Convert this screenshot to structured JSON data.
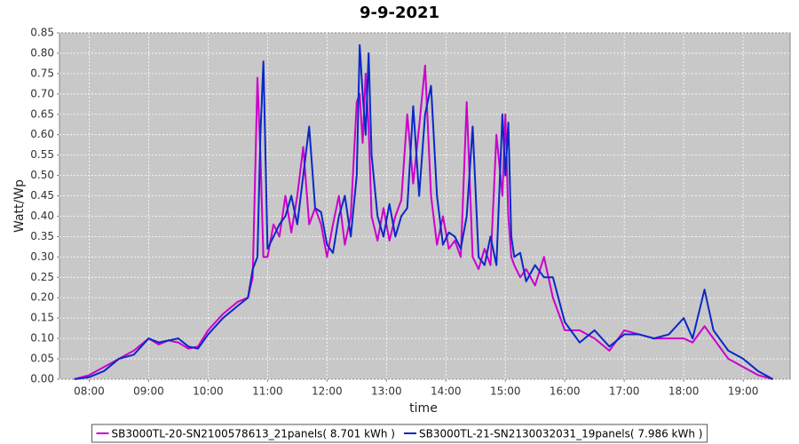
{
  "chart_data": {
    "type": "line",
    "title": "9-9-2021",
    "x_label": "time",
    "y_label": "Watt/Wp",
    "grid": true,
    "legend": "bottom",
    "xlim": [
      7.5,
      19.79
    ],
    "ylim": [
      0,
      0.85
    ],
    "xticks": [
      {
        "value": 8,
        "label": "08:00"
      },
      {
        "value": 9,
        "label": "09:00"
      },
      {
        "value": 10,
        "label": "10:00"
      },
      {
        "value": 11,
        "label": "11:00"
      },
      {
        "value": 12,
        "label": "12:00"
      },
      {
        "value": 13,
        "label": "13:00"
      },
      {
        "value": 14,
        "label": "14:00"
      },
      {
        "value": 15,
        "label": "15:00"
      },
      {
        "value": 16,
        "label": "16:00"
      },
      {
        "value": 17,
        "label": "17:00"
      },
      {
        "value": 18,
        "label": "18:00"
      },
      {
        "value": 19,
        "label": "19:00"
      }
    ],
    "yticks": [
      {
        "value": 0,
        "label": "0.00"
      },
      {
        "value": 0.05,
        "label": "0.05"
      },
      {
        "value": 0.1,
        "label": "0.10"
      },
      {
        "value": 0.15,
        "label": "0.15"
      },
      {
        "value": 0.2,
        "label": "0.20"
      },
      {
        "value": 0.25,
        "label": "0.25"
      },
      {
        "value": 0.3,
        "label": "0.30"
      },
      {
        "value": 0.35,
        "label": "0.35"
      },
      {
        "value": 0.4,
        "label": "0.40"
      },
      {
        "value": 0.45,
        "label": "0.45"
      },
      {
        "value": 0.5,
        "label": "0.50"
      },
      {
        "value": 0.55,
        "label": "0.55"
      },
      {
        "value": 0.6,
        "label": "0.60"
      },
      {
        "value": 0.65,
        "label": "0.65"
      },
      {
        "value": 0.7,
        "label": "0.70"
      },
      {
        "value": 0.75,
        "label": "0.75"
      },
      {
        "value": 0.8,
        "label": "0.80"
      },
      {
        "value": 0.85,
        "label": "0.85"
      }
    ],
    "x": [
      7.75,
      8.0,
      8.25,
      8.5,
      8.75,
      9.0,
      9.17,
      9.33,
      9.5,
      9.67,
      9.83,
      10.0,
      10.25,
      10.5,
      10.67,
      10.75,
      10.83,
      10.88,
      10.93,
      11.0,
      11.1,
      11.2,
      11.3,
      11.4,
      11.5,
      11.6,
      11.7,
      11.8,
      11.9,
      12.0,
      12.1,
      12.2,
      12.3,
      12.4,
      12.5,
      12.55,
      12.6,
      12.65,
      12.7,
      12.75,
      12.85,
      12.95,
      13.05,
      13.15,
      13.25,
      13.35,
      13.45,
      13.55,
      13.65,
      13.75,
      13.85,
      13.95,
      14.05,
      14.15,
      14.25,
      14.35,
      14.45,
      14.55,
      14.65,
      14.75,
      14.85,
      14.95,
      15.0,
      15.05,
      15.1,
      15.15,
      15.25,
      15.35,
      15.5,
      15.65,
      15.8,
      16.0,
      16.25,
      16.5,
      16.75,
      17.0,
      17.25,
      17.5,
      17.75,
      18.0,
      18.15,
      18.35,
      18.5,
      18.75,
      19.0,
      19.25,
      19.5
    ],
    "series": [
      {
        "name": "SB3000TL-20-SN2100578613_21panels( 8.701 kWh )",
        "color": "#cc00cc",
        "values": [
          0,
          0.01,
          0.03,
          0.05,
          0.07,
          0.1,
          0.085,
          0.095,
          0.09,
          0.075,
          0.08,
          0.12,
          0.16,
          0.19,
          0.2,
          0.25,
          0.74,
          0.55,
          0.3,
          0.3,
          0.38,
          0.35,
          0.45,
          0.36,
          0.45,
          0.57,
          0.38,
          0.42,
          0.38,
          0.3,
          0.38,
          0.45,
          0.33,
          0.4,
          0.68,
          0.7,
          0.58,
          0.75,
          0.62,
          0.4,
          0.34,
          0.42,
          0.34,
          0.4,
          0.44,
          0.65,
          0.48,
          0.62,
          0.77,
          0.45,
          0.33,
          0.4,
          0.32,
          0.34,
          0.3,
          0.68,
          0.3,
          0.27,
          0.32,
          0.28,
          0.6,
          0.45,
          0.65,
          0.4,
          0.3,
          0.28,
          0.25,
          0.27,
          0.23,
          0.3,
          0.2,
          0.12,
          0.12,
          0.1,
          0.07,
          0.12,
          0.11,
          0.1,
          0.1,
          0.1,
          0.09,
          0.13,
          0.1,
          0.05,
          0.03,
          0.01,
          0
        ]
      },
      {
        "name": "SB3000TL-21-SN2130032031_19panels( 7.986 kWh )",
        "color": "#0a28c8",
        "values": [
          0,
          0.005,
          0.02,
          0.05,
          0.06,
          0.1,
          0.09,
          0.095,
          0.1,
          0.08,
          0.075,
          0.11,
          0.15,
          0.18,
          0.2,
          0.27,
          0.3,
          0.6,
          0.78,
          0.32,
          0.35,
          0.38,
          0.4,
          0.45,
          0.38,
          0.5,
          0.62,
          0.42,
          0.41,
          0.33,
          0.31,
          0.4,
          0.45,
          0.35,
          0.5,
          0.82,
          0.7,
          0.6,
          0.8,
          0.55,
          0.4,
          0.35,
          0.43,
          0.35,
          0.4,
          0.42,
          0.67,
          0.45,
          0.65,
          0.72,
          0.45,
          0.33,
          0.36,
          0.35,
          0.32,
          0.4,
          0.62,
          0.3,
          0.28,
          0.35,
          0.28,
          0.65,
          0.5,
          0.63,
          0.35,
          0.3,
          0.31,
          0.24,
          0.28,
          0.25,
          0.25,
          0.14,
          0.09,
          0.12,
          0.08,
          0.11,
          0.11,
          0.1,
          0.11,
          0.15,
          0.1,
          0.22,
          0.12,
          0.07,
          0.05,
          0.02,
          0
        ]
      }
    ]
  }
}
